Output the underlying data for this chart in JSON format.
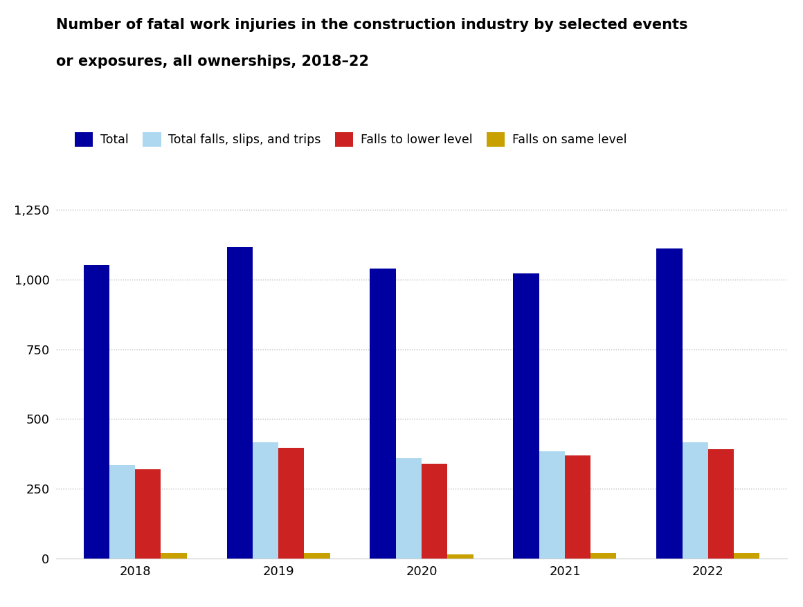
{
  "years": [
    "2018",
    "2019",
    "2020",
    "2021",
    "2022"
  ],
  "series": {
    "Total": [
      1053,
      1117,
      1040,
      1023,
      1112
    ],
    "Total falls, slips, and trips": [
      335,
      416,
      360,
      385,
      416
    ],
    "Falls to lower level": [
      320,
      396,
      340,
      370,
      391
    ],
    "Falls on same level": [
      20,
      20,
      15,
      20,
      20
    ]
  },
  "colors": {
    "Total": "#0000a0",
    "Total falls, slips, and trips": "#add8f0",
    "Falls to lower level": "#cc2222",
    "Falls on same level": "#c8a000"
  },
  "title_line1": "Number of fatal work injuries in the construction industry by selected events",
  "title_line2": "or exposures, all ownerships, 2018–22",
  "ylim": [
    0,
    1350
  ],
  "yticks": [
    0,
    250,
    500,
    750,
    1000,
    1250
  ],
  "ytick_labels": [
    "0",
    "250",
    "500",
    "750",
    "1,000",
    "1,250"
  ],
  "background_color": "#ffffff",
  "title_fontsize": 15,
  "legend_fontsize": 12.5,
  "tick_fontsize": 13
}
